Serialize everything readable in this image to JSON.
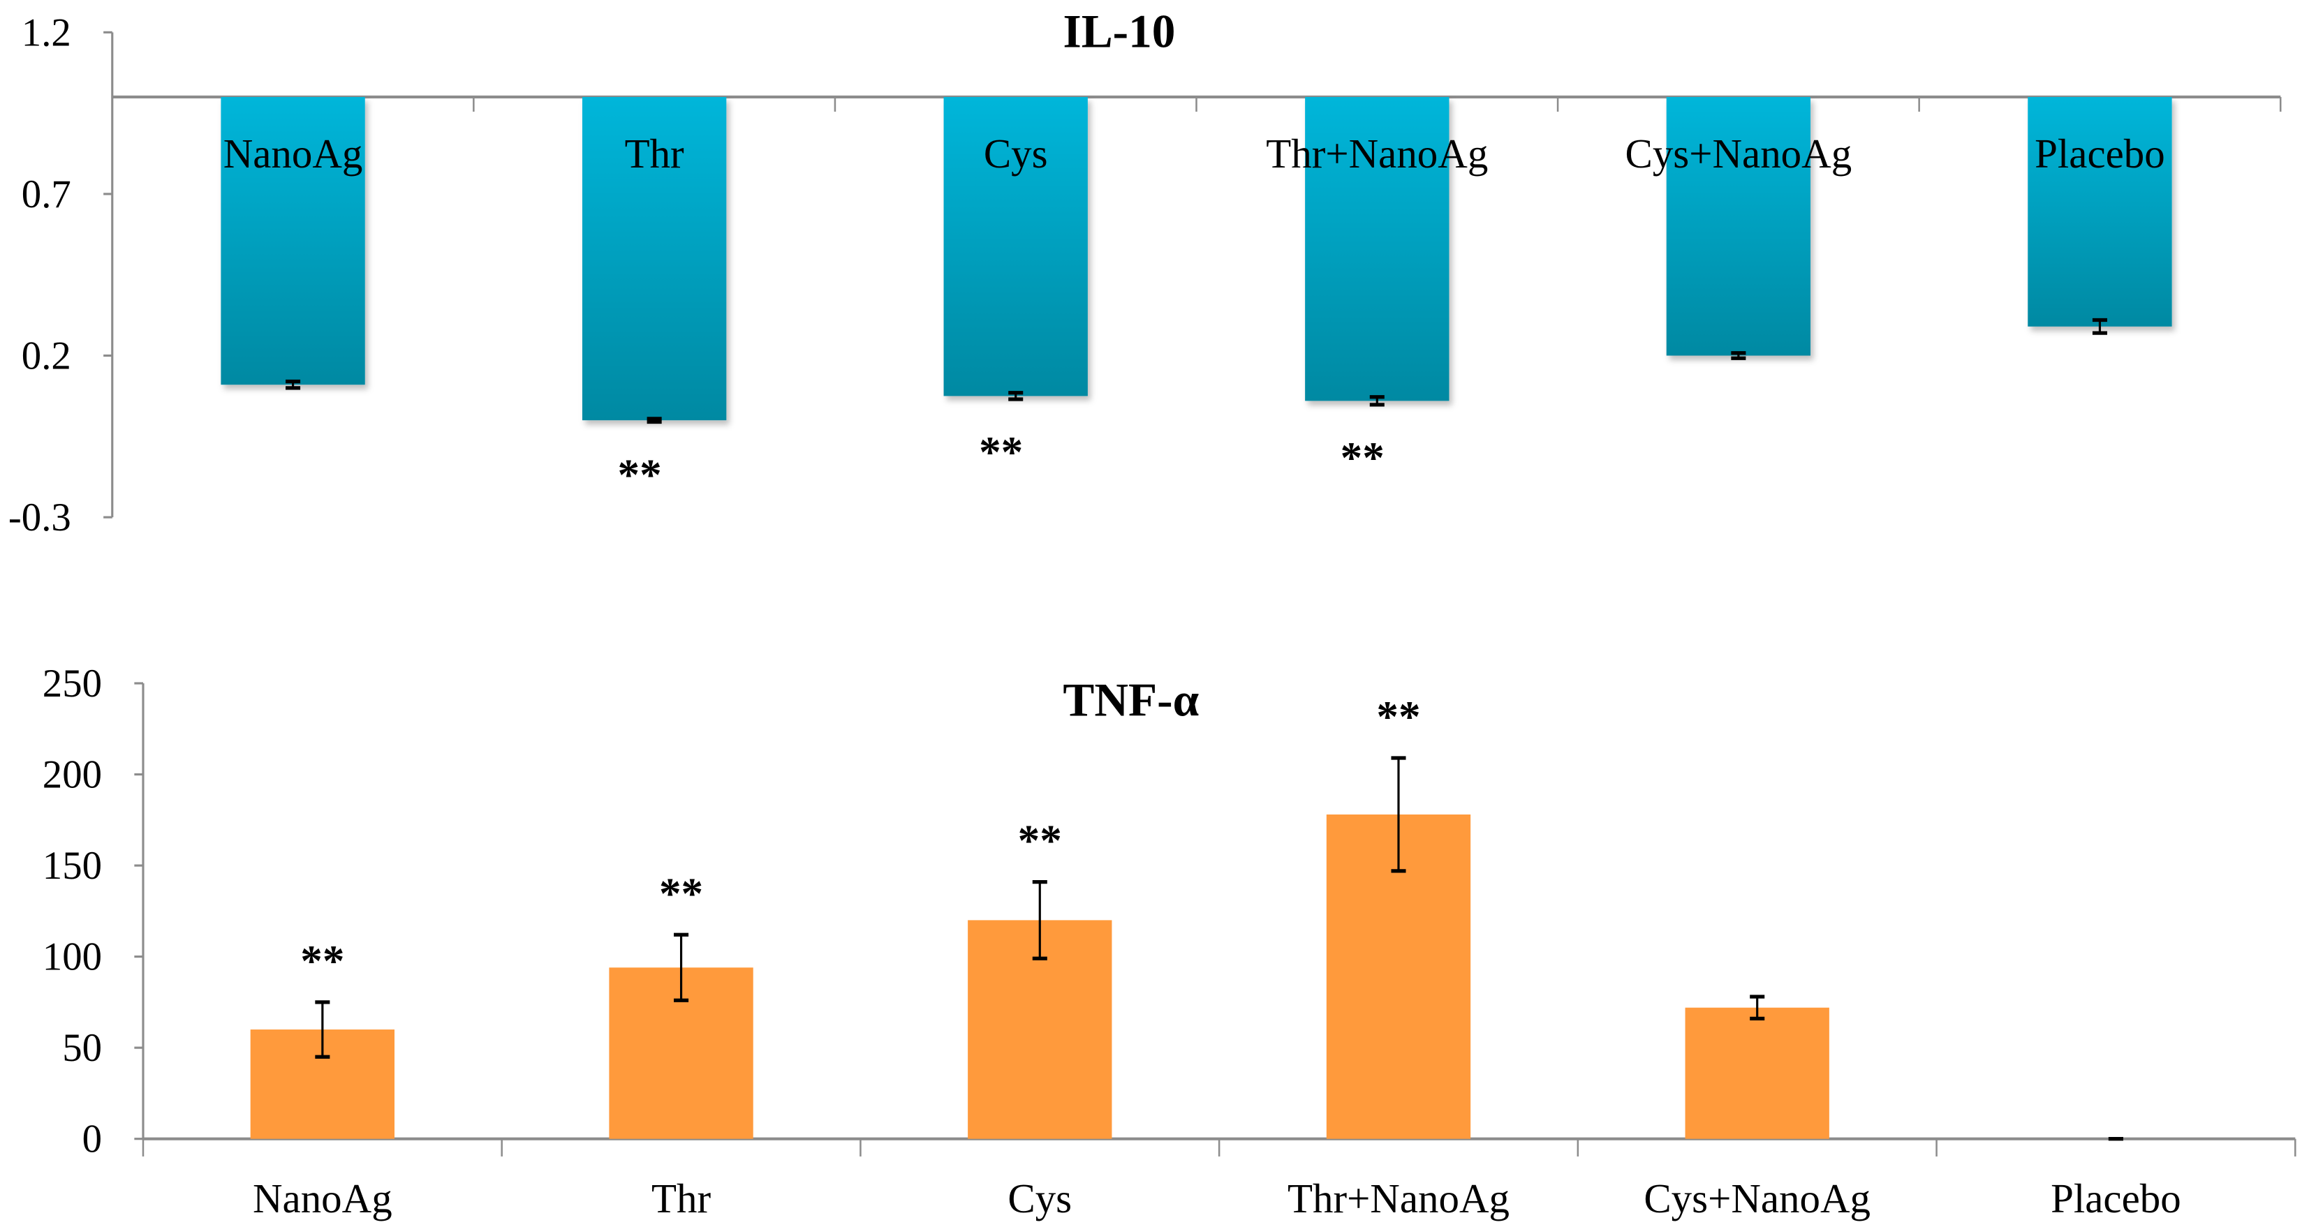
{
  "chart_data": [
    {
      "type": "bar",
      "title": "IL-10",
      "categories": [
        "NanoAg",
        "Thr",
        "Cys",
        "Thr+NanoAg",
        "Cys+NanoAg",
        "Placebo"
      ],
      "values": [
        0.11,
        0.0,
        0.075,
        0.06,
        0.2,
        0.29
      ],
      "errors": [
        0.01,
        0.005,
        0.01,
        0.012,
        0.008,
        0.02
      ],
      "baseline": 1.0,
      "significance": [
        "",
        "**",
        "**",
        "**",
        "",
        ""
      ],
      "yticks": [
        "1.2",
        "0.7",
        "0.2",
        "-0.3"
      ],
      "ylim": [
        -0.3,
        1.2
      ],
      "xlabel": "",
      "ylabel": "",
      "color": "#00A9C9",
      "grid": false
    },
    {
      "type": "bar",
      "title": "TNF-α",
      "categories": [
        "NanoAg",
        "Thr",
        "Cys",
        "Thr+NanoAg",
        "Cys+NanoAg",
        "Placebo"
      ],
      "values": [
        60,
        94,
        120,
        178,
        72,
        0
      ],
      "errors": [
        15,
        18,
        21,
        31,
        6,
        0
      ],
      "baseline": 0,
      "significance": [
        "**",
        "**",
        "**",
        "**",
        "",
        ""
      ],
      "yticks": [
        "250",
        "200",
        "150",
        "100",
        "50",
        "0"
      ],
      "ylim": [
        0,
        250
      ],
      "xlabel": "",
      "ylabel": "",
      "color": "#FF9A3C",
      "grid": false
    }
  ]
}
